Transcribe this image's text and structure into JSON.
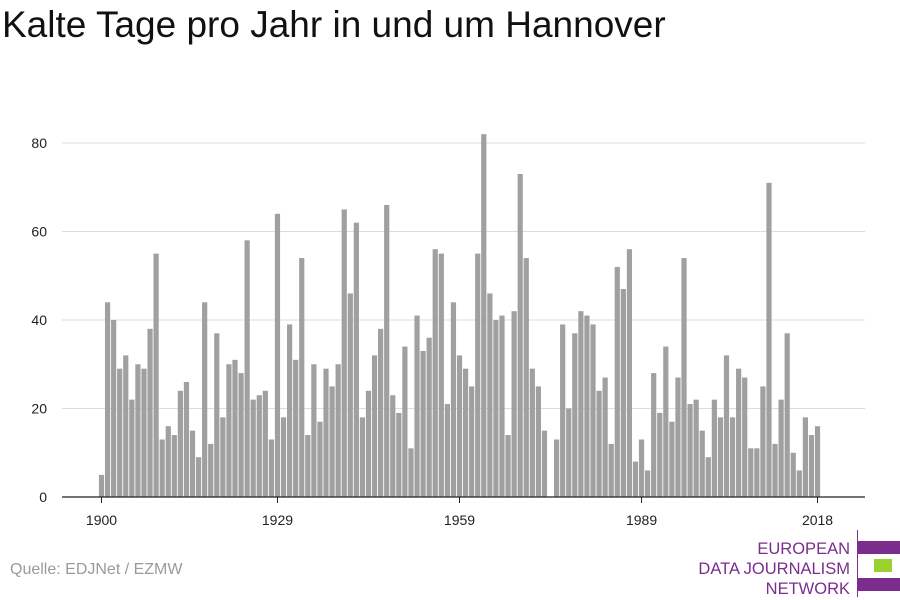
{
  "title": "Kalte Tage pro Jahr in und um Hannover",
  "source": "Quelle: EDJNet / EZMW",
  "logo": {
    "lines": [
      "EUROPEAN",
      "DATA JOURNALISM",
      "NETWORK"
    ],
    "colors": {
      "purple": "#7b2d8e",
      "green": "#9bd12f"
    }
  },
  "chart_data": {
    "type": "bar",
    "title": "Kalte Tage pro Jahr in und um Hannover",
    "xlabel": "",
    "ylabel": "",
    "x_start": 1900,
    "x_end": 2018,
    "x_ticks": [
      1900,
      1929,
      1959,
      1989,
      2018
    ],
    "y_ticks": [
      0,
      20,
      40,
      60,
      80
    ],
    "ylim": [
      0,
      85
    ],
    "grid": true,
    "bar_color": "#a0a0a0",
    "values": [
      5,
      44,
      40,
      29,
      32,
      22,
      30,
      29,
      38,
      55,
      13,
      16,
      14,
      24,
      26,
      15,
      9,
      44,
      12,
      37,
      18,
      30,
      31,
      28,
      58,
      22,
      23,
      24,
      13,
      64,
      18,
      39,
      31,
      54,
      14,
      30,
      17,
      29,
      25,
      30,
      65,
      46,
      62,
      18,
      24,
      32,
      38,
      66,
      23,
      19,
      34,
      11,
      41,
      33,
      36,
      56,
      55,
      21,
      44,
      32,
      29,
      25,
      55,
      82,
      46,
      40,
      41,
      14,
      42,
      73,
      54,
      29,
      25,
      15,
      0,
      13,
      39,
      20,
      37,
      42,
      41,
      39,
      24,
      27,
      12,
      52,
      47,
      56,
      8,
      13,
      6,
      28,
      19,
      34,
      17,
      27,
      54,
      21,
      22,
      15,
      9,
      22,
      18,
      32,
      18,
      29,
      27,
      11,
      11,
      25,
      71,
      12,
      22,
      37,
      10,
      6,
      18,
      14,
      16
    ]
  }
}
